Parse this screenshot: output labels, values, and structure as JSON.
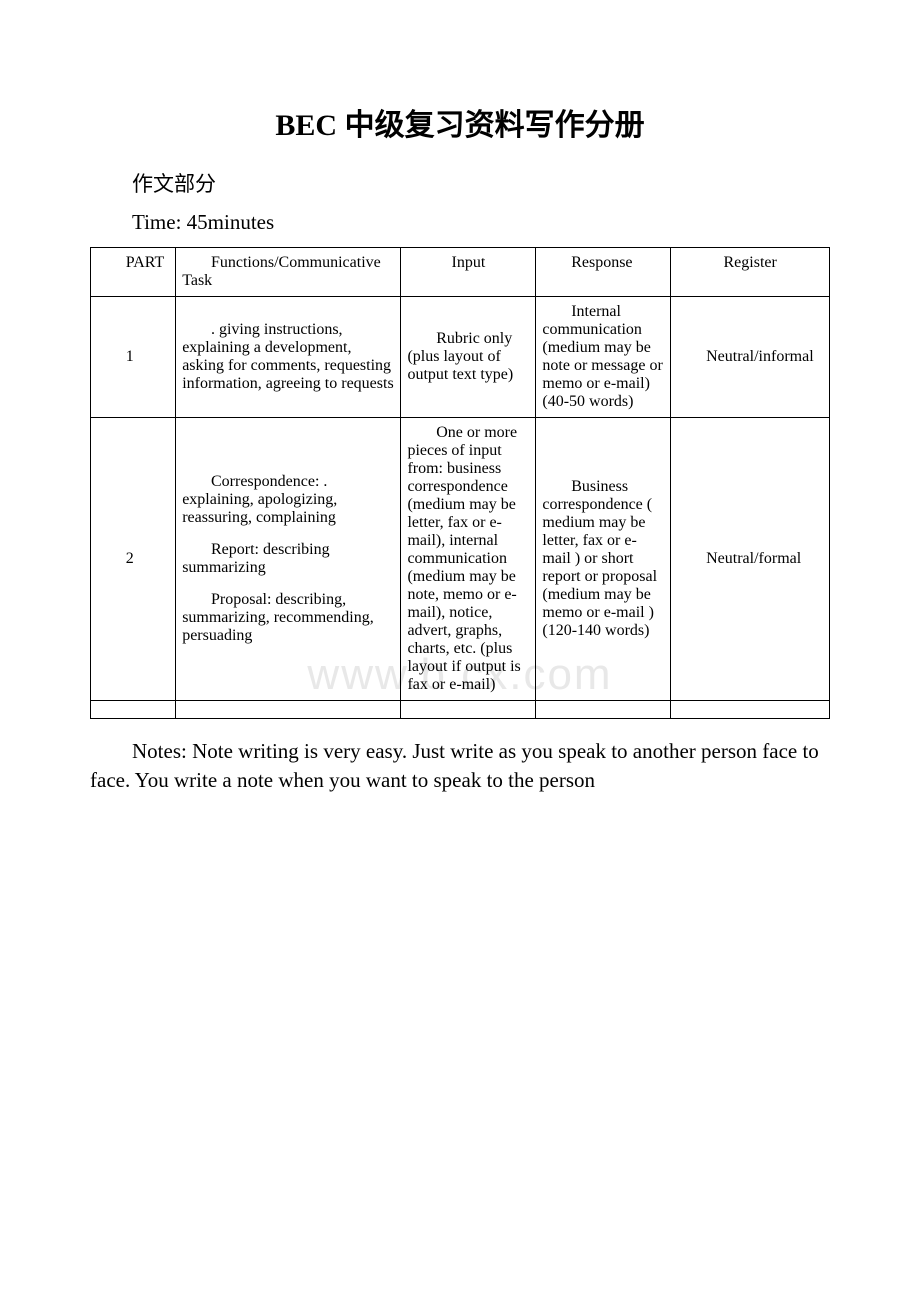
{
  "document": {
    "title": "BEC 中级复习资料写作分册",
    "subtitle": "作文部分",
    "time_label": "Time: 45minutes",
    "watermark": "www.b   cx.com",
    "footer_text": "Notes: Note writing is very easy. Just write as you speak to another person face to face. You write a note when you want to speak to the person"
  },
  "table": {
    "headers": {
      "part": "PART",
      "functions": "Functions/Communicative Task",
      "input": "Input",
      "response": "Response",
      "register": "Register"
    },
    "rows": [
      {
        "part": "1",
        "functions_blocks": [
          ". giving instructions, explaining a development, asking for comments, requesting information, agreeing to requests"
        ],
        "input": "Rubric only (plus layout of output text type)",
        "response": "Internal communication (medium may be note or message or memo or e-mail) (40-50 words)",
        "register": "Neutral/informal"
      },
      {
        "part": "2",
        "functions_blocks": [
          "Correspondence: . explaining, apologizing, reassuring, complaining",
          "Report: describing summarizing",
          "Proposal: describing, summarizing, recommending, persuading"
        ],
        "input": "One or more pieces of input from: business correspondence (medium may be letter, fax or e-mail), internal communication (medium may be note, memo or e-mail), notice, advert, graphs, charts, etc. (plus layout if output is fax or e-mail)",
        "response": "Business correspondence ( medium may be letter, fax or e-mail ) or short report or proposal (medium may be memo or e-mail ) (120-140 words)",
        "register": "Neutral/formal"
      }
    ]
  },
  "styling": {
    "background_color": "#ffffff",
    "text_color": "#000000",
    "border_color": "#000000",
    "title_fontsize": 30,
    "body_fontsize": 21,
    "table_fontsize": 16,
    "watermark_color": "#e8e8e8",
    "font_family": "Times New Roman"
  }
}
